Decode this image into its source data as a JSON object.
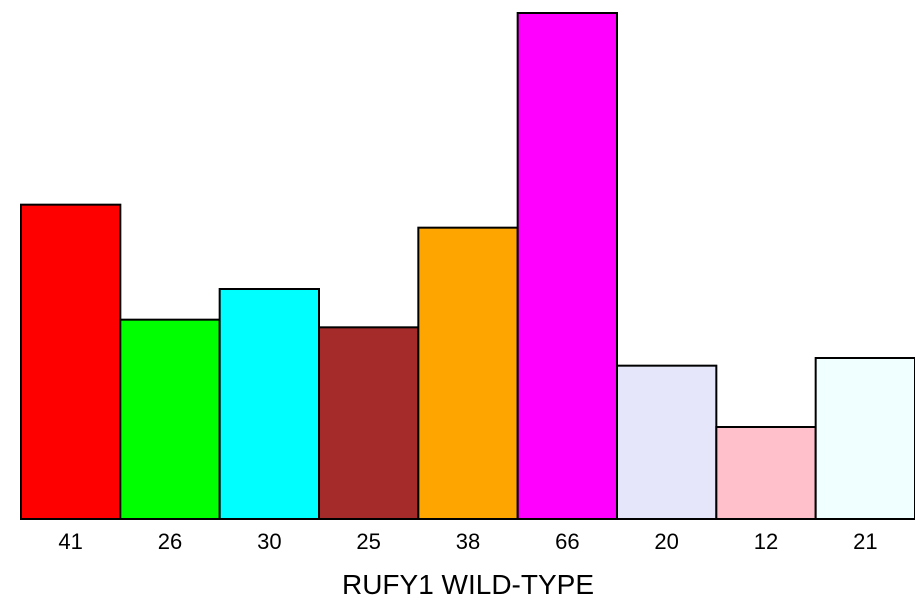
{
  "chart_data": {
    "type": "bar",
    "categories": [
      "41",
      "26",
      "30",
      "25",
      "38",
      "66",
      "20",
      "12",
      "21"
    ],
    "values": [
      41,
      26,
      30,
      25,
      38,
      66,
      20,
      12,
      21
    ],
    "colors": [
      "#ff0000",
      "#00ff00",
      "#00ffff",
      "#a52a2a",
      "#ffa500",
      "#ff00ff",
      "#e6e6fa",
      "#ffc0cb",
      "#f0ffff"
    ],
    "title": "",
    "xlabel": "RUFY1 WILD-TYPE",
    "ylabel": "",
    "ylim": [
      0,
      66
    ],
    "grid": false
  }
}
